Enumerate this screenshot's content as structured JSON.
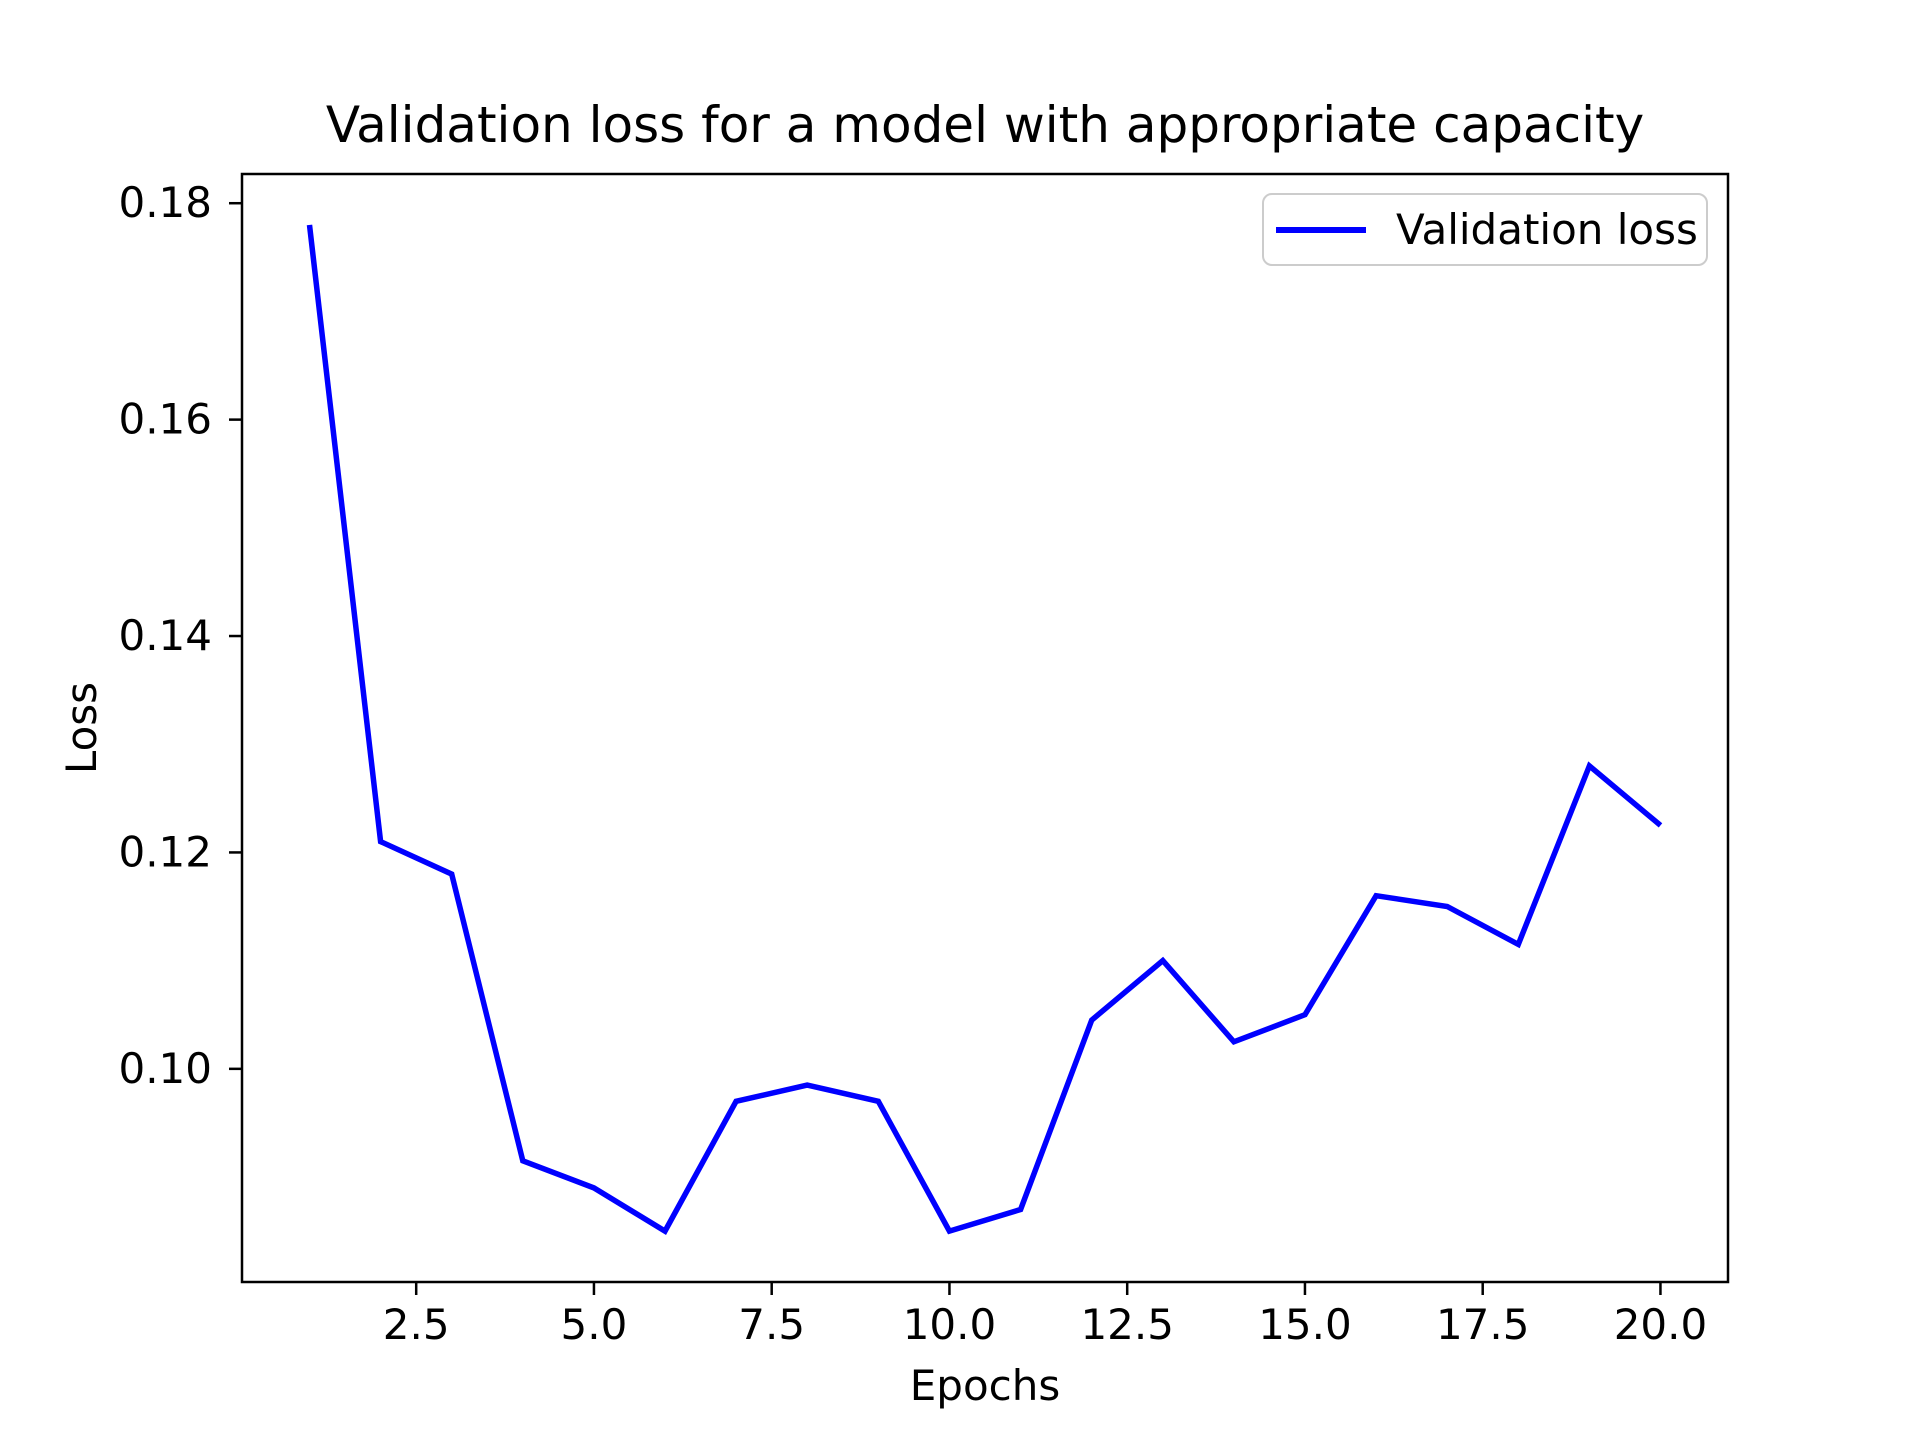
{
  "chart_data": {
    "type": "line",
    "title": "Validation loss for a model with appropriate capacity",
    "xlabel": "Epochs",
    "ylabel": "Loss",
    "xlim": [
      0.05,
      20.95
    ],
    "ylim": [
      0.0803,
      0.1827
    ],
    "xticks": [
      2.5,
      5.0,
      7.5,
      10.0,
      12.5,
      15.0,
      17.5,
      20.0
    ],
    "xtick_labels": [
      "2.5",
      "5.0",
      "7.5",
      "10.0",
      "12.5",
      "15.0",
      "17.5",
      "20.0"
    ],
    "yticks": [
      0.1,
      0.12,
      0.14,
      0.16,
      0.18
    ],
    "ytick_labels": [
      "0.10",
      "0.12",
      "0.14",
      "0.16",
      "0.18"
    ],
    "grid": false,
    "legend": {
      "position": "upper right",
      "label": "Validation loss"
    },
    "colors": {
      "line": "#0000ff",
      "axes": "#000000",
      "text": "#000000",
      "legend_border": "#cccccc"
    },
    "series": [
      {
        "name": "Validation loss",
        "x": [
          1,
          2,
          3,
          4,
          5,
          6,
          7,
          8,
          9,
          10,
          11,
          12,
          13,
          14,
          15,
          16,
          17,
          18,
          19,
          20
        ],
        "y": [
          0.178,
          0.121,
          0.118,
          0.0915,
          0.089,
          0.085,
          0.097,
          0.0985,
          0.097,
          0.085,
          0.087,
          0.1045,
          0.11,
          0.1025,
          0.105,
          0.116,
          0.115,
          0.1115,
          0.128,
          0.1225
        ]
      }
    ]
  }
}
